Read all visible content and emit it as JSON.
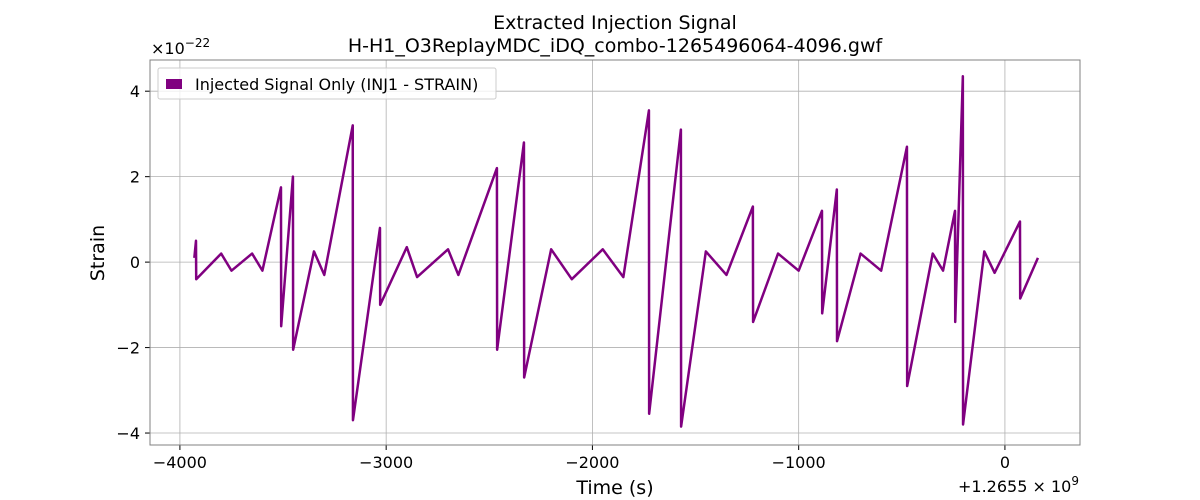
{
  "chart_data": {
    "type": "line",
    "title": "Extracted Injection Signal",
    "subtitle": "H-H1_O3ReplayMDC_iDQ_combo-1265496064-4096.gwf",
    "xlabel": "Time (s)",
    "ylabel": "Strain",
    "y_offset_label": "×10",
    "y_offset_exponent": "−22",
    "x_offset_label": "+1.2655 × 10",
    "x_offset_exponent": "9",
    "xlim": [
      -4145,
      364
    ],
    "ylim": [
      -4.28,
      4.73
    ],
    "xticks": [
      {
        "value": -4000,
        "label": "−4000"
      },
      {
        "value": -3000,
        "label": "−3000"
      },
      {
        "value": -2000,
        "label": "−2000"
      },
      {
        "value": -1000,
        "label": "−1000"
      },
      0
    ],
    "yticks": [
      {
        "value": -4,
        "label": "−4"
      },
      {
        "value": -2,
        "label": "−2"
      },
      0,
      2,
      4
    ],
    "grid": true,
    "legend": "upper left",
    "series": [
      {
        "name": "Injected Signal Only (INJ1 - STRAIN)",
        "color": "#800080",
        "x": [
          -3930,
          -3922,
          -3921,
          -3800,
          -3750,
          -3650,
          -3600,
          -3510,
          -3509,
          -3452,
          -3451,
          -3350,
          -3300,
          -3162,
          -3161,
          -3030,
          -3029,
          -2900,
          -2850,
          -2700,
          -2650,
          -2463,
          -2462,
          -2332,
          -2331,
          -2200,
          -2100,
          -1950,
          -1850,
          -1726,
          -1725,
          -1571,
          -1570,
          -1450,
          -1350,
          -1222,
          -1221,
          -1100,
          -1000,
          -887,
          -886,
          -815,
          -814,
          -700,
          -600,
          -475,
          -474,
          -350,
          -300,
          -242,
          -241,
          -204,
          -203,
          -100,
          -50,
          73,
          74,
          160
        ],
        "values": [
          0.1,
          0.5,
          -0.4,
          0.2,
          -0.2,
          0.2,
          -0.2,
          1.75,
          -1.5,
          2.0,
          -2.05,
          0.25,
          -0.3,
          3.2,
          -3.7,
          0.8,
          -1.0,
          0.35,
          -0.35,
          0.3,
          -0.3,
          2.2,
          -2.05,
          2.8,
          -2.7,
          0.3,
          -0.4,
          0.3,
          -0.35,
          3.55,
          -3.55,
          3.1,
          -3.85,
          0.25,
          -0.3,
          1.3,
          -1.4,
          0.2,
          -0.2,
          1.2,
          -1.2,
          1.7,
          -1.85,
          0.2,
          -0.2,
          2.7,
          -2.9,
          0.2,
          -0.2,
          1.2,
          -1.4,
          4.35,
          -3.8,
          0.25,
          -0.25,
          0.95,
          -0.85,
          0.1
        ]
      }
    ]
  }
}
